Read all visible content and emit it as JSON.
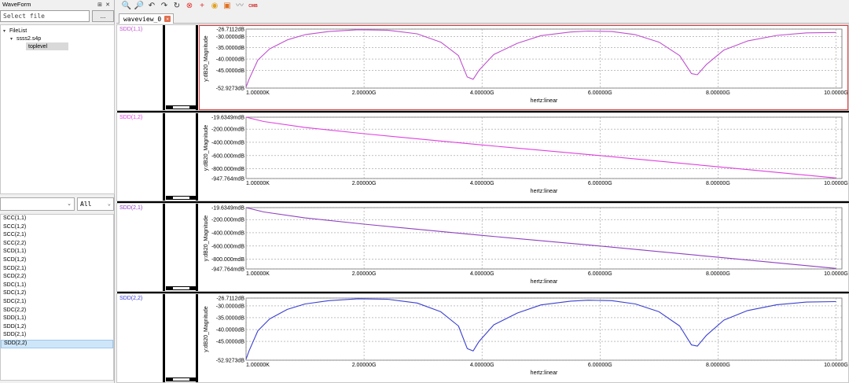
{
  "left_panel": {
    "title": "WaveForm",
    "header_buttons": [
      "⊞",
      "✕"
    ],
    "file_search": {
      "placeholder": "Select file",
      "value": ""
    },
    "browse_label": "...",
    "tree": {
      "root": "FileList",
      "file": "ssss2.s4p",
      "child": "toplevel"
    },
    "filter_type": {
      "value": ""
    },
    "filter_scope": {
      "value": "All"
    },
    "signals": [
      "SCC(1,1)",
      "SCC(1,2)",
      "SCC(2,1)",
      "SCC(2,2)",
      "SCD(1,1)",
      "SCD(1,2)",
      "SCD(2,1)",
      "SCD(2,2)",
      "SDC(1,1)",
      "SDC(1,2)",
      "SDC(2,1)",
      "SDC(2,2)",
      "SDD(1,1)",
      "SDD(1,2)",
      "SDD(2,1)",
      "SDD(2,2)"
    ],
    "selected_signal": "SDD(2,2)"
  },
  "toolbar": {
    "buttons": [
      {
        "icon": "zoom-in-icon",
        "glyph": "🔍"
      },
      {
        "icon": "zoom-out-icon",
        "glyph": "🔎"
      },
      {
        "icon": "undo-icon",
        "glyph": "↶"
      },
      {
        "icon": "redo-icon",
        "glyph": "↷"
      },
      {
        "icon": "refresh-icon",
        "glyph": "↻"
      },
      {
        "icon": "delete-icon",
        "glyph": "⊗"
      },
      {
        "icon": "add-marker-icon",
        "glyph": "+"
      },
      {
        "icon": "marker-icon",
        "glyph": "◉"
      },
      {
        "icon": "settings-icon",
        "glyph": "▣"
      },
      {
        "icon": "waveform-icon",
        "glyph": "〰"
      },
      {
        "icon": "cmb-icon",
        "glyph": "CMB"
      }
    ]
  },
  "tab": {
    "label": "waveview_0",
    "close_glyph": "×"
  },
  "colors": {
    "magenta": "#c04fd0",
    "pink": "#e040e0",
    "purple": "#9040c0",
    "blue": "#3a3fd0",
    "active_border": "#e04040"
  },
  "panes": [
    {
      "label": "SDD(1,1)",
      "label_color": "#c050d0",
      "active": true,
      "ylabel": "y:dB20_Magnitude",
      "xlabel": "hertz:linear",
      "yticks": [
        "-26.7112dB",
        "-30.0000dB",
        "-35.0000dB",
        "-40.0000dB",
        "-45.0000dB",
        "-52.9273dB"
      ],
      "xticks": [
        "1.00000K",
        "2.00000G",
        "4.00000G",
        "6.00000G",
        "8.00000G",
        "10.0000G"
      ]
    },
    {
      "label": "SDD(1,2)",
      "label_color": "#e040e0",
      "active": false,
      "ylabel": "y:dB20_Magnitude",
      "xlabel": "hertz:linear",
      "yticks": [
        "-19.6349mdB",
        "-200.000mdB",
        "-400.000mdB",
        "-600.000mdB",
        "-800.000mdB",
        "-947.764mdB"
      ],
      "xticks": [
        "1.00000K",
        "2.00000G",
        "4.00000G",
        "6.00000G",
        "8.00000G",
        "10.0000G"
      ]
    },
    {
      "label": "SDD(2,1)",
      "label_color": "#9040c0",
      "active": false,
      "ylabel": "y:dB20_Magnitude",
      "xlabel": "hertz:linear",
      "yticks": [
        "-19.6349mdB",
        "-200.000mdB",
        "-400.000mdB",
        "-600.000mdB",
        "-800.000mdB",
        "-947.764mdB"
      ],
      "xticks": [
        "1.00000K",
        "2.00000G",
        "4.00000G",
        "6.00000G",
        "8.00000G",
        "10.0000G"
      ]
    },
    {
      "label": "SDD(2,2)",
      "label_color": "#3a3fd0",
      "active": false,
      "ylabel": "y:dB20_Magnitude",
      "xlabel": "hertz:linear",
      "yticks": [
        "-26.7112dB",
        "-30.0000dB",
        "-35.0000dB",
        "-40.0000dB",
        "-45.0000dB",
        "-52.9273dB"
      ],
      "xticks": [
        "1.00000K",
        "2.00000G",
        "4.00000G",
        "6.00000G",
        "8.00000G",
        "10.0000G"
      ]
    }
  ],
  "chart_data": [
    {
      "type": "line",
      "title": "SDD(1,1)",
      "xlabel": "hertz:linear",
      "ylabel": "y:dB20_Magnitude",
      "xlim": [
        0,
        10.1
      ],
      "ylim": [
        -52.9273,
        -26.7112
      ],
      "x_unit": "GHz",
      "y_unit": "dB",
      "series": [
        {
          "name": "SDD(1,1)",
          "color": "#c04fd0",
          "x": [
            0.0,
            0.05,
            0.2,
            0.4,
            0.7,
            1.0,
            1.4,
            1.9,
            2.4,
            2.9,
            3.3,
            3.6,
            3.75,
            3.85,
            3.95,
            4.2,
            4.6,
            5.0,
            5.5,
            5.8,
            6.2,
            6.6,
            7.0,
            7.35,
            7.55,
            7.65,
            7.8,
            8.1,
            8.5,
            9.0,
            9.5,
            10.0
          ],
          "y": [
            -52.5,
            -49.0,
            -40.5,
            -35.5,
            -31.5,
            -29.2,
            -27.8,
            -27.0,
            -27.2,
            -28.8,
            -32.5,
            -38.5,
            -48.0,
            -49.0,
            -45.0,
            -38.0,
            -33.0,
            -29.6,
            -28.0,
            -27.6,
            -27.8,
            -29.2,
            -32.5,
            -38.5,
            -46.5,
            -47.0,
            -42.5,
            -36.0,
            -32.0,
            -29.5,
            -28.4,
            -28.2
          ]
        }
      ]
    },
    {
      "type": "line",
      "title": "SDD(1,2)",
      "xlabel": "hertz:linear",
      "ylabel": "y:dB20_Magnitude",
      "xlim": [
        0,
        10.1
      ],
      "ylim": [
        -947.764,
        -19.6349
      ],
      "x_unit": "GHz",
      "y_unit": "mdB",
      "series": [
        {
          "name": "SDD(1,2)",
          "color": "#e040e0",
          "x": [
            0.0,
            0.3,
            1.0,
            2.0,
            3.0,
            4.0,
            5.0,
            6.0,
            7.0,
            8.0,
            9.0,
            10.0
          ],
          "y": [
            -19.6349,
            -85,
            -175,
            -270,
            -355,
            -440,
            -520,
            -600,
            -685,
            -770,
            -855,
            -940
          ]
        }
      ]
    },
    {
      "type": "line",
      "title": "SDD(2,1)",
      "xlabel": "hertz:linear",
      "ylabel": "y:dB20_Magnitude",
      "xlim": [
        0,
        10.1
      ],
      "ylim": [
        -947.764,
        -19.6349
      ],
      "x_unit": "GHz",
      "y_unit": "mdB",
      "series": [
        {
          "name": "SDD(2,1)",
          "color": "#9040c0",
          "x": [
            0.0,
            0.3,
            1.0,
            2.0,
            3.0,
            4.0,
            5.0,
            6.0,
            7.0,
            8.0,
            9.0,
            10.0
          ],
          "y": [
            -19.6349,
            -85,
            -175,
            -270,
            -355,
            -440,
            -520,
            -600,
            -685,
            -770,
            -855,
            -940
          ]
        }
      ]
    },
    {
      "type": "line",
      "title": "SDD(2,2)",
      "xlabel": "hertz:linear",
      "ylabel": "y:dB20_Magnitude",
      "xlim": [
        0,
        10.1
      ],
      "ylim": [
        -52.9273,
        -26.7112
      ],
      "x_unit": "GHz",
      "y_unit": "dB",
      "series": [
        {
          "name": "SDD(2,2)",
          "color": "#3a3fd0",
          "x": [
            0.0,
            0.05,
            0.2,
            0.4,
            0.7,
            1.0,
            1.4,
            1.9,
            2.4,
            2.9,
            3.3,
            3.6,
            3.75,
            3.85,
            3.95,
            4.2,
            4.6,
            5.0,
            5.5,
            5.8,
            6.2,
            6.6,
            7.0,
            7.35,
            7.55,
            7.65,
            7.8,
            8.1,
            8.5,
            9.0,
            9.5,
            10.0
          ],
          "y": [
            -52.5,
            -49.0,
            -40.5,
            -35.5,
            -31.5,
            -29.2,
            -27.8,
            -27.0,
            -27.2,
            -28.8,
            -32.5,
            -38.5,
            -48.0,
            -49.0,
            -45.0,
            -38.0,
            -33.0,
            -29.6,
            -28.0,
            -27.6,
            -27.8,
            -29.2,
            -32.5,
            -38.5,
            -46.5,
            -47.0,
            -42.5,
            -36.0,
            -32.0,
            -29.5,
            -28.4,
            -28.2
          ]
        }
      ]
    }
  ]
}
